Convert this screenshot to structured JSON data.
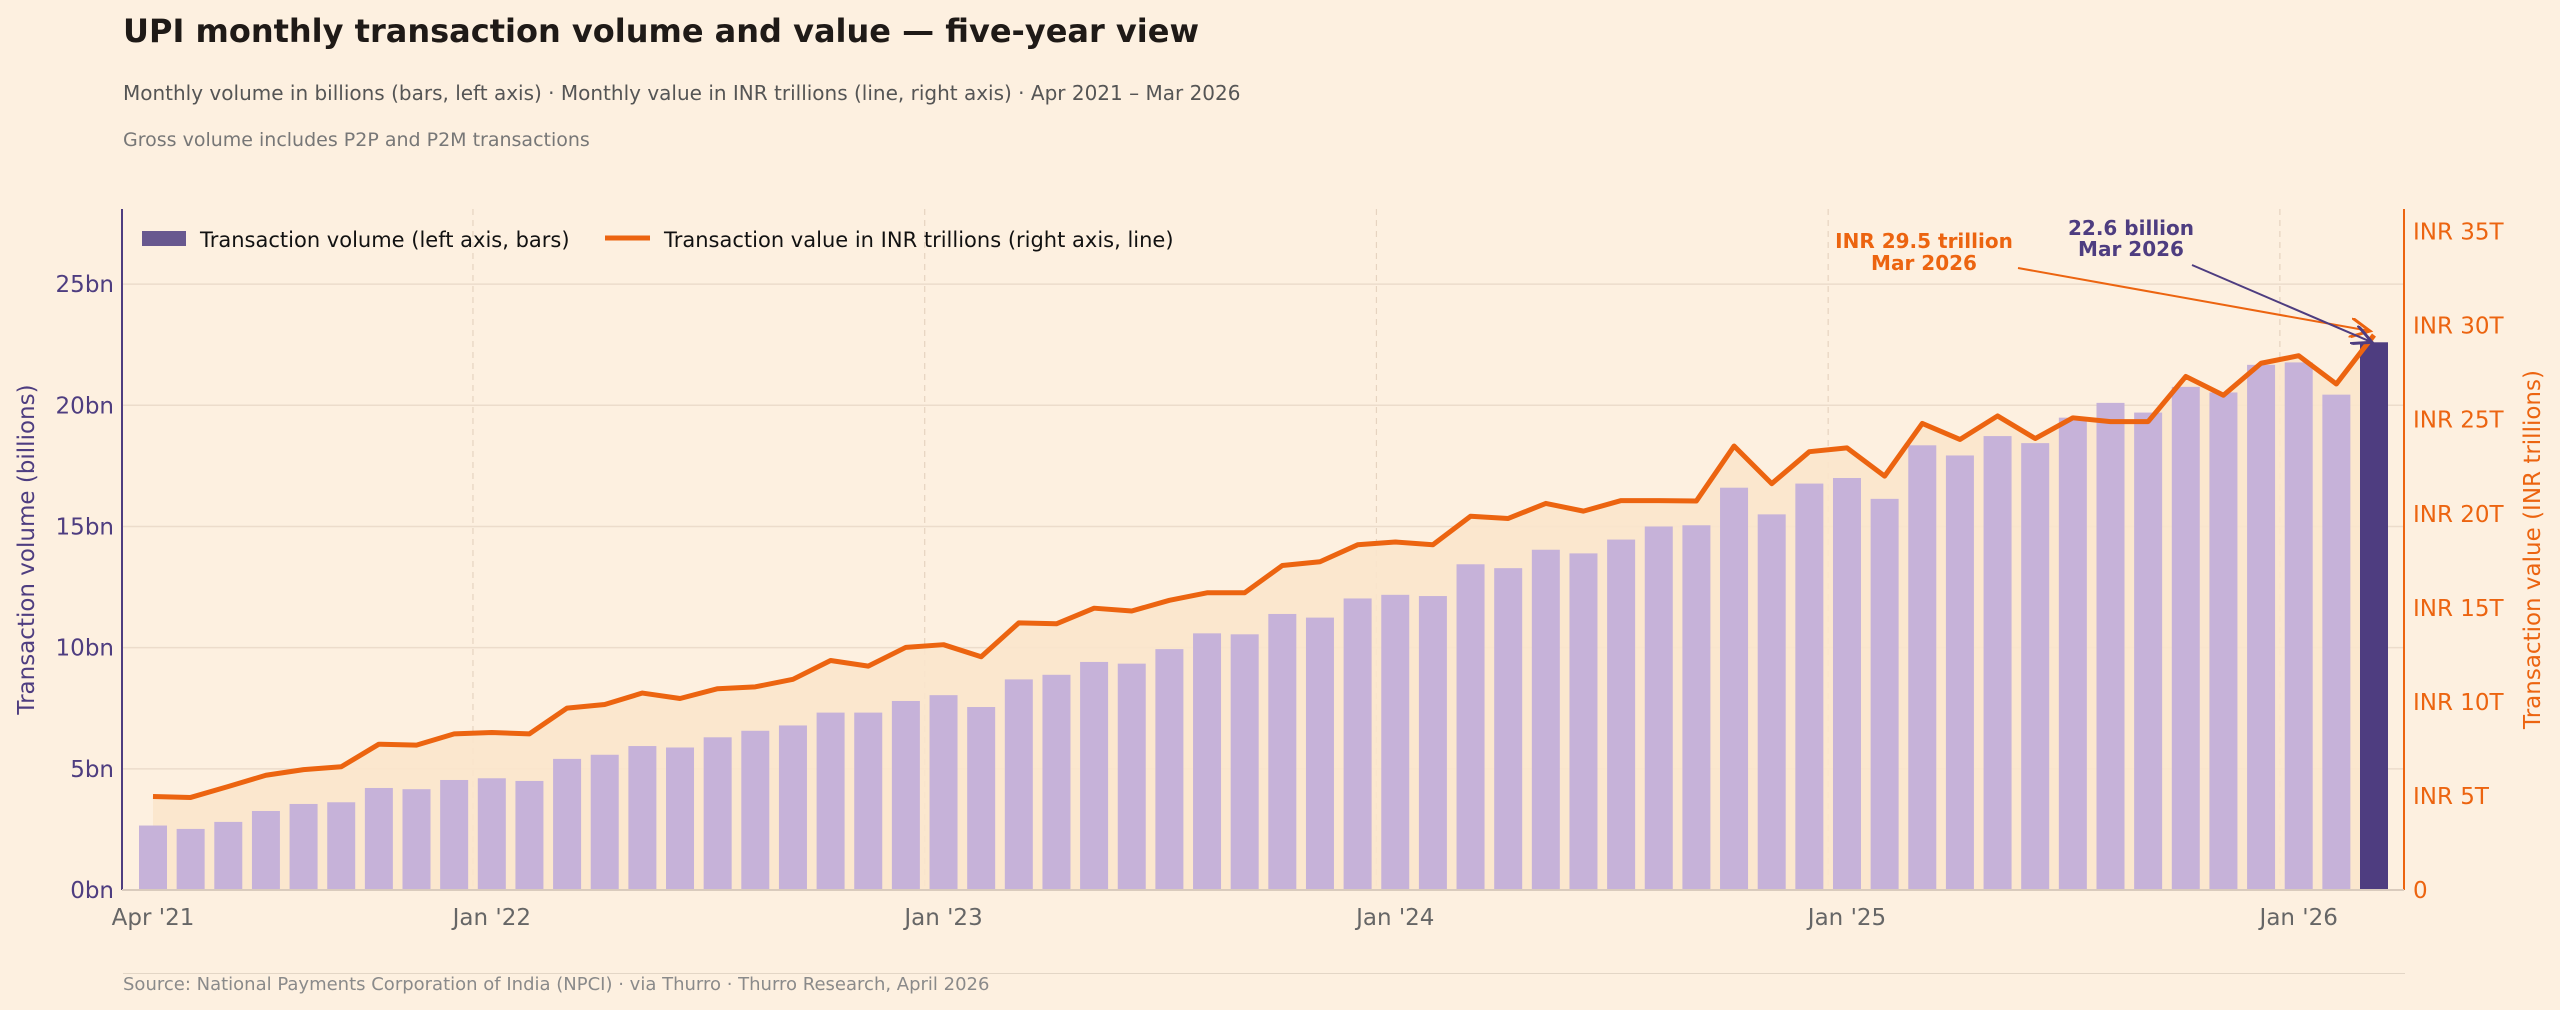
{
  "header": {
    "title": "UPI monthly transaction volume and value — five-year view",
    "subtitle": "Monthly volume in billions (bars, left axis) · Monthly value in INR trillions (line, right axis) · Apr 2021 – Mar 2026",
    "note": "Gross volume includes P2P and P2M transactions"
  },
  "footer": {
    "source": "Source: National Payments Corporation of India (NPCI) · via Thurro · Thurro Research, April 2026"
  },
  "colors": {
    "background": "#fdf0e0",
    "bars": "#c6b2d9",
    "bar_highlight": "#4e3d80",
    "line": "#ec6410",
    "area": "#fbe5cc",
    "left_axis": "#4e3d80",
    "right_axis": "#ec6410"
  },
  "chart_data": {
    "type": "bar+line",
    "grid": true,
    "legend_placement": "top-left",
    "legend": [
      "Transaction volume (left axis, bars)",
      "Transaction value in INR trillions (right axis, line)"
    ],
    "xlabel": "",
    "ylabel_left": "Transaction volume (billions)",
    "ylabel_right": "Transaction value (INR trillions)",
    "x_start": "2021-04",
    "x_end": "2026-03",
    "x_ticks": [
      {
        "month": "2021-04",
        "label": "Apr '21"
      },
      {
        "month": "2022-01",
        "label": "Jan '22"
      },
      {
        "month": "2023-01",
        "label": "Jan '23"
      },
      {
        "month": "2024-01",
        "label": "Jan '24"
      },
      {
        "month": "2025-01",
        "label": "Jan '25"
      },
      {
        "month": "2026-01",
        "label": "Jan '26"
      }
    ],
    "ylim_left": [
      0,
      28.1
    ],
    "ylim_right": [
      0,
      36.2
    ],
    "y_ticks_left": [
      {
        "v": 0,
        "label": "0bn"
      },
      {
        "v": 5,
        "label": "5bn"
      },
      {
        "v": 10,
        "label": "10bn"
      },
      {
        "v": 15,
        "label": "15bn"
      },
      {
        "v": 20,
        "label": "20bn"
      },
      {
        "v": 25,
        "label": "25bn"
      }
    ],
    "y_ticks_right": [
      {
        "v": 0,
        "label": "0"
      },
      {
        "v": 5,
        "label": "INR 5T"
      },
      {
        "v": 10,
        "label": "INR 10T"
      },
      {
        "v": 15,
        "label": "INR 15T"
      },
      {
        "v": 20,
        "label": "INR 20T"
      },
      {
        "v": 25,
        "label": "INR 25T"
      },
      {
        "v": 30,
        "label": "INR 30T"
      },
      {
        "v": 35,
        "label": "INR 35T"
      }
    ],
    "series": [
      {
        "name": "Transaction volume (left axis, bars)",
        "axis": "left",
        "unit": "billion",
        "values": [
          2.66,
          2.52,
          2.81,
          3.26,
          3.55,
          3.62,
          4.21,
          4.16,
          4.54,
          4.61,
          4.5,
          5.41,
          5.58,
          5.94,
          5.88,
          6.3,
          6.57,
          6.79,
          7.32,
          7.32,
          7.8,
          8.04,
          7.55,
          8.69,
          8.88,
          9.41,
          9.34,
          9.94,
          10.59,
          10.55,
          11.39,
          11.24,
          12.03,
          12.18,
          12.13,
          13.44,
          13.28,
          14.04,
          13.89,
          14.46,
          15.0,
          15.05,
          16.6,
          15.5,
          16.77,
          17.0,
          16.14,
          18.35,
          17.93,
          18.73,
          18.44,
          19.49,
          20.1,
          19.7,
          20.76,
          20.53,
          21.67,
          21.77,
          20.44,
          22.6
        ]
      },
      {
        "name": "Transaction value in INR trillions (right axis, line)",
        "axis": "right",
        "unit": "INR trillion",
        "values": [
          4.97,
          4.92,
          5.5,
          6.1,
          6.4,
          6.55,
          7.75,
          7.7,
          8.3,
          8.37,
          8.3,
          9.67,
          9.86,
          10.47,
          10.18,
          10.7,
          10.8,
          11.2,
          12.2,
          11.9,
          12.9,
          13.04,
          12.4,
          14.2,
          14.15,
          14.98,
          14.83,
          15.4,
          15.8,
          15.8,
          17.25,
          17.45,
          18.35,
          18.5,
          18.35,
          19.87,
          19.75,
          20.55,
          20.14,
          20.7,
          20.7,
          20.68,
          23.6,
          21.6,
          23.3,
          23.5,
          22.0,
          24.8,
          23.95,
          25.2,
          24.0,
          25.1,
          24.9,
          24.9,
          27.3,
          26.3,
          28.0,
          28.4,
          26.9,
          29.5
        ]
      }
    ],
    "annotations": [
      {
        "target": "value",
        "month": "2026-03",
        "lines": [
          "INR 29.5 trillion",
          "Mar 2026"
        ]
      },
      {
        "target": "volume",
        "month": "2026-03",
        "lines": [
          "22.6 billion",
          "Mar 2026"
        ]
      }
    ]
  }
}
